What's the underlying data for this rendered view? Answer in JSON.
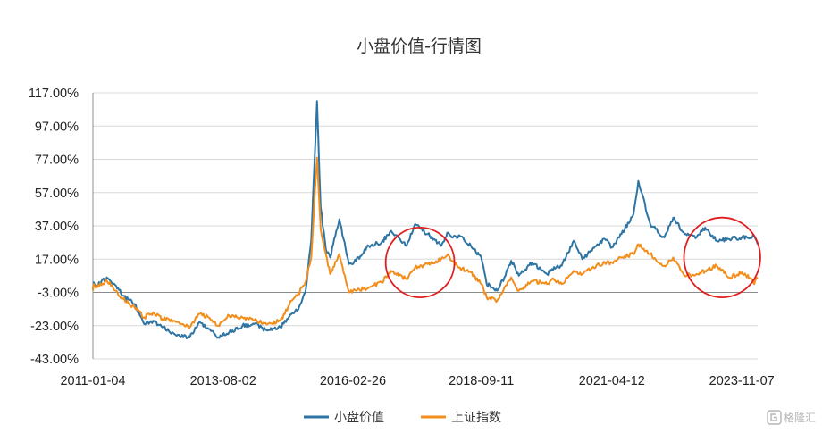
{
  "chart_data": {
    "type": "line",
    "title": "小盘价值-行情图",
    "xlabel": "",
    "ylabel": "",
    "x_tick_labels": [
      "2011-01-04",
      "2013-08-02",
      "2016-02-26",
      "2018-09-11",
      "2021-04-12",
      "2023-11-07"
    ],
    "y_tick_labels": [
      "117.00%",
      "97.00%",
      "77.00%",
      "57.00%",
      "37.00%",
      "17.00%",
      "-3.00%",
      "-23.00%",
      "-43.00%"
    ],
    "ylim": [
      -43,
      117
    ],
    "xlim": [
      "2011-01-04",
      "2024-03-01"
    ],
    "grid": "horizontal",
    "legend_position": "bottom",
    "series": [
      {
        "name": "小盘价值",
        "color": "#2e75a4",
        "x": [
          "2011-01-04",
          "2011-01-10",
          "2011-02-01",
          "2011-04-15",
          "2011-06-20",
          "2011-08-10",
          "2011-11-01",
          "2012-01-10",
          "2012-03-15",
          "2012-05-20",
          "2012-08-15",
          "2012-12-05",
          "2013-02-10",
          "2013-04-20",
          "2013-06-28",
          "2013-09-15",
          "2013-12-20",
          "2014-03-15",
          "2014-06-20",
          "2014-09-20",
          "2014-12-10",
          "2015-01-20",
          "2015-03-20",
          "2015-05-01",
          "2015-06-12",
          "2015-07-08",
          "2015-08-15",
          "2015-09-15",
          "2015-11-20",
          "2016-01-28",
          "2016-03-20",
          "2016-06-20",
          "2016-09-20",
          "2016-11-28",
          "2017-03-20",
          "2017-05-20",
          "2017-08-20",
          "2017-11-25",
          "2018-01-15",
          "2018-02-10",
          "2018-04-10",
          "2018-06-28",
          "2018-09-11",
          "2018-10-20",
          "2019-01-04",
          "2019-02-25",
          "2019-04-15",
          "2019-06-10",
          "2019-09-15",
          "2019-12-30",
          "2020-02-03",
          "2020-04-15",
          "2020-07-10",
          "2020-09-10",
          "2020-12-20",
          "2021-02-20",
          "2021-04-12",
          "2021-06-20",
          "2021-09-15",
          "2021-10-20",
          "2022-01-15",
          "2022-04-26",
          "2022-06-30",
          "2022-09-20",
          "2022-12-15",
          "2023-02-15",
          "2023-05-10",
          "2023-08-10",
          "2023-11-07",
          "2024-01-20",
          "2024-02-05",
          "2024-03-01"
        ],
        "values": [
          -1,
          3,
          1,
          6,
          1,
          -5,
          -10,
          -22,
          -20,
          -24,
          -28,
          -30,
          -21,
          -25,
          -30,
          -27,
          -23,
          -22,
          -26,
          -24,
          -16,
          -14,
          -3,
          28,
          112,
          48,
          23,
          18,
          41,
          14,
          16,
          25,
          27,
          34,
          25,
          38,
          32,
          25,
          33,
          30,
          31,
          25,
          18,
          2,
          -2,
          6,
          16,
          7,
          15,
          8,
          11,
          13,
          28,
          17,
          25,
          29,
          24,
          32,
          44,
          64,
          38,
          30,
          42,
          32,
          30,
          36,
          28,
          29,
          30,
          30,
          31,
          26
        ]
      },
      {
        "name": "上证指数",
        "color": "#f28e1c",
        "x": [
          "2011-01-04",
          "2011-01-10",
          "2011-02-01",
          "2011-04-15",
          "2011-06-20",
          "2011-08-10",
          "2011-11-01",
          "2012-01-10",
          "2012-03-15",
          "2012-05-20",
          "2012-08-15",
          "2012-12-05",
          "2013-02-10",
          "2013-04-20",
          "2013-06-28",
          "2013-09-15",
          "2013-12-20",
          "2014-03-15",
          "2014-06-20",
          "2014-09-20",
          "2014-12-10",
          "2015-01-20",
          "2015-03-20",
          "2015-05-01",
          "2015-06-12",
          "2015-07-08",
          "2015-08-15",
          "2015-09-15",
          "2015-11-20",
          "2016-01-28",
          "2016-03-20",
          "2016-06-20",
          "2016-09-20",
          "2016-11-28",
          "2017-03-20",
          "2017-05-20",
          "2017-08-20",
          "2017-11-25",
          "2018-01-15",
          "2018-02-10",
          "2018-04-10",
          "2018-06-28",
          "2018-09-11",
          "2018-10-20",
          "2019-01-04",
          "2019-02-25",
          "2019-04-15",
          "2019-06-10",
          "2019-09-15",
          "2019-12-30",
          "2020-02-03",
          "2020-04-15",
          "2020-07-10",
          "2020-09-10",
          "2020-12-20",
          "2021-02-20",
          "2021-04-12",
          "2021-06-20",
          "2021-09-15",
          "2021-10-20",
          "2022-01-15",
          "2022-04-26",
          "2022-06-30",
          "2022-09-20",
          "2022-12-15",
          "2023-02-15",
          "2023-05-10",
          "2023-08-10",
          "2023-11-07",
          "2024-01-20",
          "2024-02-05",
          "2024-03-01"
        ],
        "values": [
          -2,
          2,
          0,
          4,
          -2,
          -7,
          -12,
          -18,
          -15,
          -19,
          -20,
          -24,
          -16,
          -18,
          -23,
          -17,
          -18,
          -20,
          -22,
          -20,
          -8,
          -5,
          3,
          18,
          78,
          35,
          20,
          8,
          20,
          -3,
          -2,
          0,
          3,
          10,
          5,
          12,
          14,
          17,
          20,
          16,
          12,
          9,
          2,
          -6,
          -8,
          0,
          6,
          -2,
          4,
          2,
          5,
          2,
          10,
          8,
          13,
          15,
          15,
          18,
          20,
          26,
          20,
          13,
          18,
          7,
          8,
          10,
          13,
          6,
          9,
          5,
          2,
          6
        ]
      }
    ],
    "annotations": [
      {
        "shape": "red-ellipse",
        "x_range": [
          "2016-10-20",
          "2018-03-01"
        ],
        "y_range": [
          -6,
          36
        ]
      },
      {
        "shape": "red-ellipse",
        "x_range": [
          "2022-09-15",
          "2024-03-20"
        ],
        "y_range": [
          -6,
          42
        ]
      }
    ]
  },
  "watermark": {
    "text": "格隆汇",
    "icon": "gelonghui-logo-icon"
  }
}
